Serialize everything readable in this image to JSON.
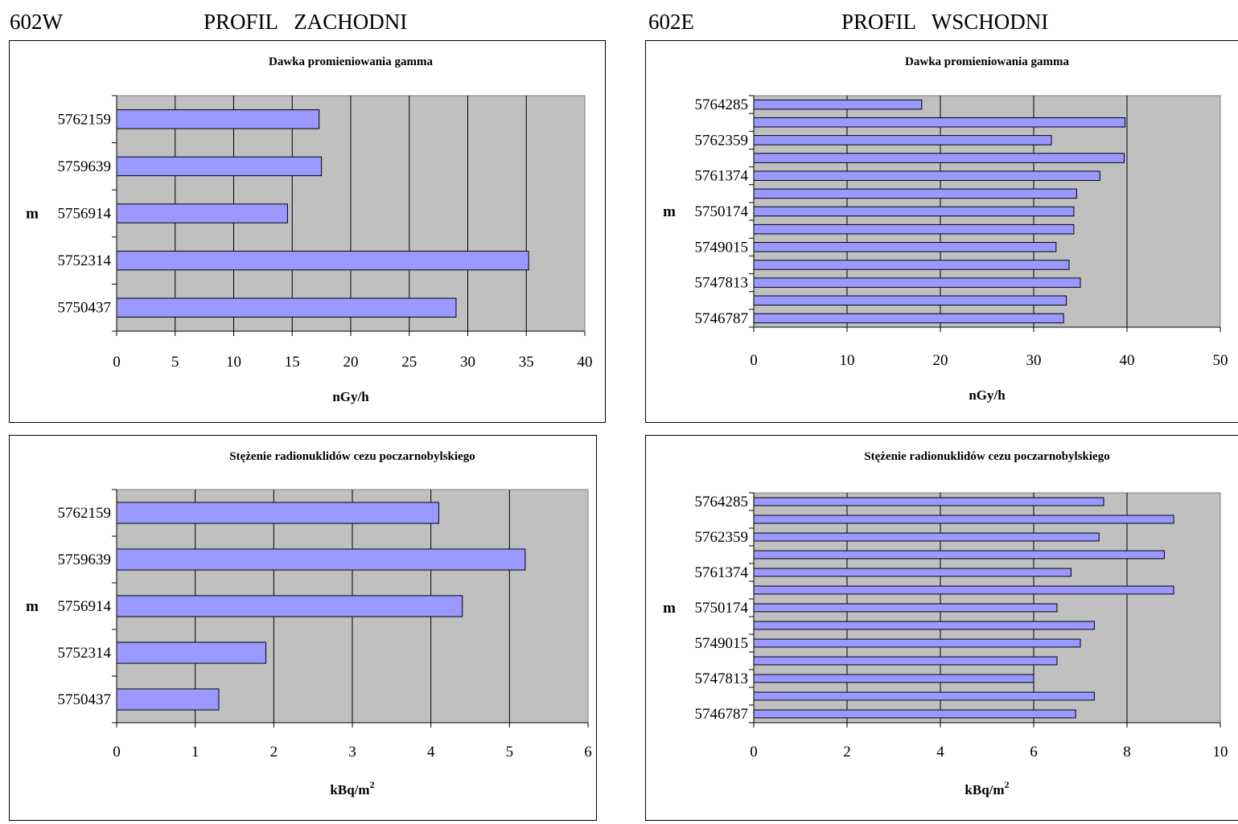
{
  "left": {
    "code": "602W",
    "title": "PROFIL   ZACHODNI",
    "charts": [
      {
        "type": "bar",
        "title": "Dawka promieniowania gamma",
        "xlabel": "nGy/h",
        "xlim": [
          0,
          40
        ],
        "xticks": [
          0,
          5,
          10,
          15,
          20,
          25,
          30,
          35,
          40
        ],
        "grid": true,
        "marker_prefix": "m",
        "marker_category": "5756914",
        "categories": [
          "5762159",
          "5759639",
          "5756914",
          "5752314",
          "5750437"
        ],
        "values": [
          17.3,
          17.5,
          14.6,
          35.2,
          29.0
        ],
        "bar_color": "#9999ff"
      },
      {
        "type": "bar",
        "title": "Stężenie radionuklidów cezu poczarnobylskiego",
        "xlabel": "kBq/m",
        "xlabel_sup": "2",
        "xlim": [
          0,
          6
        ],
        "xticks": [
          0,
          1,
          2,
          3,
          4,
          5,
          6
        ],
        "grid": true,
        "marker_prefix": "m",
        "marker_category": "5756914",
        "categories": [
          "5762159",
          "5759639",
          "5756914",
          "5752314",
          "5750437"
        ],
        "values": [
          4.1,
          5.2,
          4.4,
          1.9,
          1.3
        ],
        "bar_color": "#9999ff"
      }
    ]
  },
  "right": {
    "code": "602E",
    "title": "PROFIL   WSCHODNI",
    "charts": [
      {
        "type": "bar",
        "title": "Dawka promieniowania gamma",
        "xlabel": "nGy/h",
        "xlim": [
          0,
          50
        ],
        "xticks": [
          0,
          10,
          20,
          30,
          40,
          50
        ],
        "grid": true,
        "marker_prefix": "m",
        "marker_category": "5750174",
        "categories": [
          "5764285",
          "",
          "5762359",
          "",
          "5761374",
          "",
          "5750174",
          "",
          "5749015",
          "",
          "5747813",
          "",
          "5746787"
        ],
        "values": [
          18,
          39.8,
          31.9,
          39.7,
          37.1,
          34.6,
          34.3,
          34.3,
          32.4,
          33.8,
          35.0,
          33.5,
          33.2
        ],
        "bar_color": "#9999ff"
      },
      {
        "type": "bar",
        "title": "Stężenie radionuklidów cezu poczarnobylskiego",
        "xlabel": "kBq/m",
        "xlabel_sup": "2",
        "xlim": [
          0,
          10
        ],
        "xticks": [
          0,
          2,
          4,
          6,
          8,
          10
        ],
        "grid": true,
        "marker_prefix": "m",
        "marker_category": "5750174",
        "categories": [
          "5764285",
          "",
          "5762359",
          "",
          "5761374",
          "",
          "5750174",
          "",
          "5749015",
          "",
          "5747813",
          "",
          "5746787"
        ],
        "values": [
          7.5,
          9.0,
          7.4,
          8.8,
          6.8,
          9.0,
          6.5,
          7.3,
          7.0,
          6.5,
          6.0,
          7.3,
          6.9
        ],
        "bar_color": "#9999ff"
      }
    ]
  }
}
